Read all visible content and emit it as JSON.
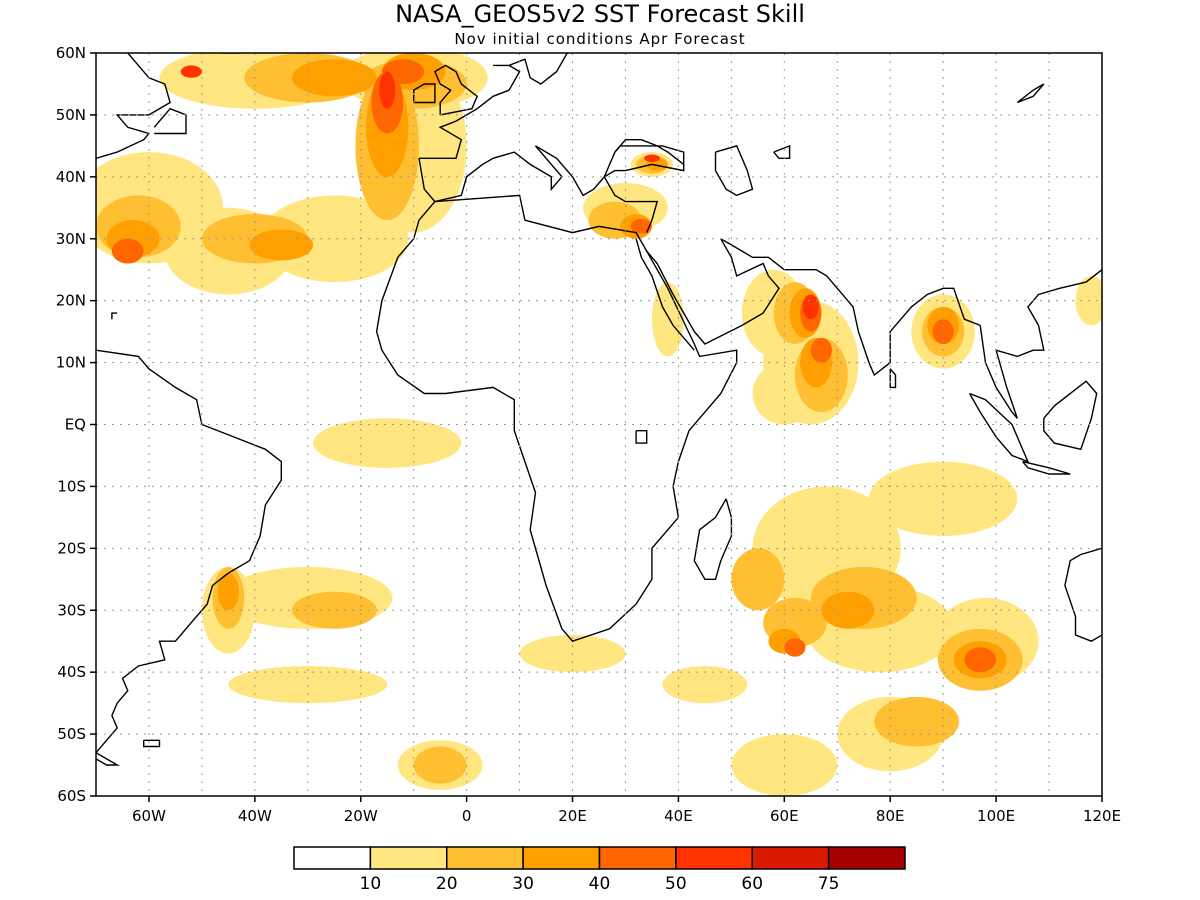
{
  "title": "NASA_GEOS5v2 SST Forecast Skill",
  "subtitle": "Nov initial conditions  Apr Forecast",
  "lat_ticks": [
    "60N",
    "50N",
    "40N",
    "30N",
    "20N",
    "10N",
    "EQ",
    "10S",
    "20S",
    "30S",
    "40S",
    "50S",
    "60S"
  ],
  "lon_ticks": [
    "60W",
    "40W",
    "20W",
    "0",
    "20E",
    "40E",
    "60E",
    "80E",
    "100E",
    "120E"
  ],
  "colorbar": {
    "colors": [
      "#ffffff",
      "#ffe680",
      "#ffbf33",
      "#ff9f00",
      "#ff6600",
      "#ff3300",
      "#d91a00",
      "#a50000"
    ],
    "labels": [
      "10",
      "20",
      "30",
      "40",
      "50",
      "60",
      "75"
    ]
  },
  "skill_regions": [
    {
      "level": 1,
      "blobs": [
        [
          -60,
          35,
          14,
          9
        ],
        [
          -45,
          28,
          12,
          7
        ],
        [
          -25,
          30,
          14,
          7
        ],
        [
          -10,
          45,
          10,
          14
        ],
        [
          -40,
          56,
          18,
          5
        ],
        [
          -10,
          56,
          14,
          5
        ],
        [
          30,
          35,
          8,
          4
        ],
        [
          35,
          42,
          4,
          2
        ],
        [
          38,
          17,
          3,
          6
        ],
        [
          58,
          18,
          6,
          7
        ],
        [
          65,
          10,
          9,
          10
        ],
        [
          60,
          5,
          6,
          5
        ],
        [
          90,
          15,
          6,
          6
        ],
        [
          118,
          20,
          3,
          4
        ],
        [
          68,
          -20,
          14,
          10
        ],
        [
          90,
          -12,
          14,
          6
        ],
        [
          98,
          -35,
          10,
          7
        ],
        [
          78,
          -33,
          14,
          7
        ],
        [
          80,
          -50,
          10,
          6
        ],
        [
          60,
          -55,
          10,
          5
        ],
        [
          -30,
          -28,
          16,
          5
        ],
        [
          -45,
          -30,
          5,
          7
        ],
        [
          -30,
          -42,
          15,
          3
        ],
        [
          -5,
          -55,
          8,
          4
        ],
        [
          -15,
          -3,
          14,
          4
        ],
        [
          20,
          -37,
          10,
          3
        ],
        [
          45,
          -42,
          8,
          3
        ]
      ]
    },
    {
      "level": 2,
      "blobs": [
        [
          -62,
          32,
          8,
          5
        ],
        [
          -40,
          30,
          10,
          4
        ],
        [
          -15,
          45,
          6,
          12
        ],
        [
          -30,
          56,
          12,
          4
        ],
        [
          -10,
          55,
          10,
          4
        ],
        [
          28,
          33,
          5,
          3
        ],
        [
          35,
          42,
          3,
          1.5
        ],
        [
          62,
          18,
          4,
          5
        ],
        [
          67,
          8,
          5,
          6
        ],
        [
          90,
          15,
          4,
          4
        ],
        [
          75,
          -28,
          10,
          5
        ],
        [
          97,
          -38,
          8,
          5
        ],
        [
          62,
          -32,
          6,
          4
        ],
        [
          85,
          -48,
          8,
          4
        ],
        [
          -45,
          -28,
          3,
          5
        ],
        [
          -25,
          -30,
          8,
          3
        ],
        [
          -5,
          -55,
          5,
          3
        ],
        [
          55,
          -25,
          5,
          5
        ]
      ]
    },
    {
      "level": 3,
      "blobs": [
        [
          -63,
          30,
          5,
          3
        ],
        [
          -35,
          29,
          6,
          2.5
        ],
        [
          -15,
          48,
          4,
          8
        ],
        [
          -25,
          56,
          8,
          3
        ],
        [
          -10,
          57,
          6,
          3
        ],
        [
          32,
          32,
          3,
          2
        ],
        [
          36,
          42,
          2,
          1
        ],
        [
          64,
          18,
          3,
          4
        ],
        [
          66,
          10,
          3,
          4
        ],
        [
          90,
          16,
          3,
          3
        ],
        [
          97,
          -38,
          5,
          3
        ],
        [
          72,
          -30,
          5,
          3
        ],
        [
          60,
          -35,
          3,
          2
        ],
        [
          -45,
          -27,
          2,
          3
        ]
      ]
    },
    {
      "level": 4,
      "blobs": [
        [
          -64,
          28,
          3,
          2
        ],
        [
          -15,
          52,
          3,
          5
        ],
        [
          -12,
          57,
          4,
          2
        ],
        [
          33,
          32,
          2,
          1.2
        ],
        [
          65,
          18,
          2,
          3
        ],
        [
          67,
          12,
          2,
          2
        ],
        [
          90,
          15,
          2,
          2
        ],
        [
          97,
          -38,
          3,
          2
        ],
        [
          62,
          -36,
          2,
          1.5
        ]
      ]
    },
    {
      "level": 5,
      "blobs": [
        [
          -15,
          54,
          1.5,
          3
        ],
        [
          -52,
          57,
          2,
          1
        ],
        [
          65,
          19,
          1.5,
          2
        ],
        [
          35,
          43,
          1.5,
          0.6
        ]
      ]
    }
  ]
}
